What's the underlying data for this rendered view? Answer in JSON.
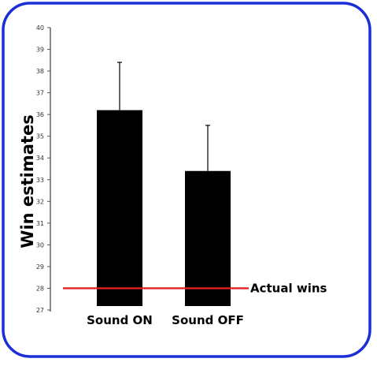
{
  "chart_data": {
    "type": "bar",
    "ylabel": "Win estimates",
    "categories": [
      "Sound ON",
      "Sound OFF"
    ],
    "values": [
      36.2,
      33.4
    ],
    "error_upper": [
      38.4,
      35.5
    ],
    "ylim": [
      27,
      40
    ],
    "yticks": [
      "27",
      "28",
      "29",
      "30",
      "31",
      "32",
      "33",
      "34",
      "35",
      "36",
      "37",
      "38",
      "39",
      "40"
    ],
    "reference_line": {
      "value": 28,
      "label": "Actual wins",
      "color": "#e02020"
    },
    "bar_color": "#000000",
    "frame_color": "#1a2fd6",
    "grid": false,
    "legend": "none"
  }
}
